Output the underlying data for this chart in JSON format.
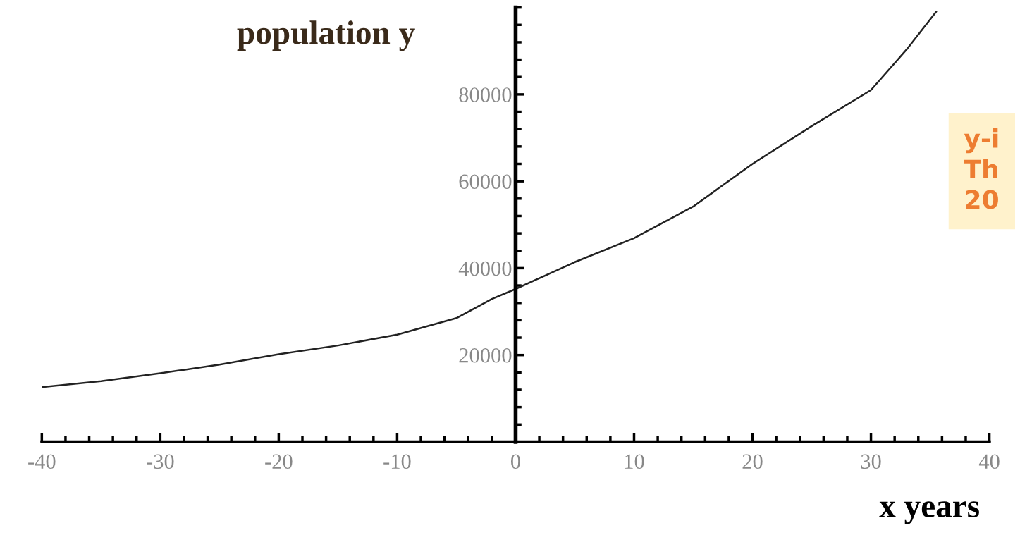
{
  "chart_data": {
    "type": "line",
    "xlabel": "x years",
    "ylabel": "population y",
    "x": [
      -40,
      -35,
      -30,
      -25,
      -20,
      -15,
      -10,
      -5,
      -2,
      0,
      5,
      10,
      15,
      20,
      25,
      30,
      33,
      35.5
    ],
    "series": [
      {
        "color": "#222222",
        "values": [
          12600,
          14000,
          15800,
          17800,
          20200,
          22200,
          24700,
          28500,
          32900,
          35200,
          41400,
          46900,
          54200,
          64000,
          72700,
          81000,
          90300,
          99000
        ]
      }
    ],
    "xlim": [
      -40,
      40
    ],
    "xticks": [
      -40,
      -30,
      -20,
      -10,
      0,
      10,
      20,
      30,
      40
    ],
    "ylim": [
      0,
      100000
    ],
    "yticks": [
      20000,
      40000,
      60000,
      80000
    ],
    "marker": "none",
    "line_style": "solid",
    "annotations": [
      "y-i\nTh\n20"
    ]
  }
}
